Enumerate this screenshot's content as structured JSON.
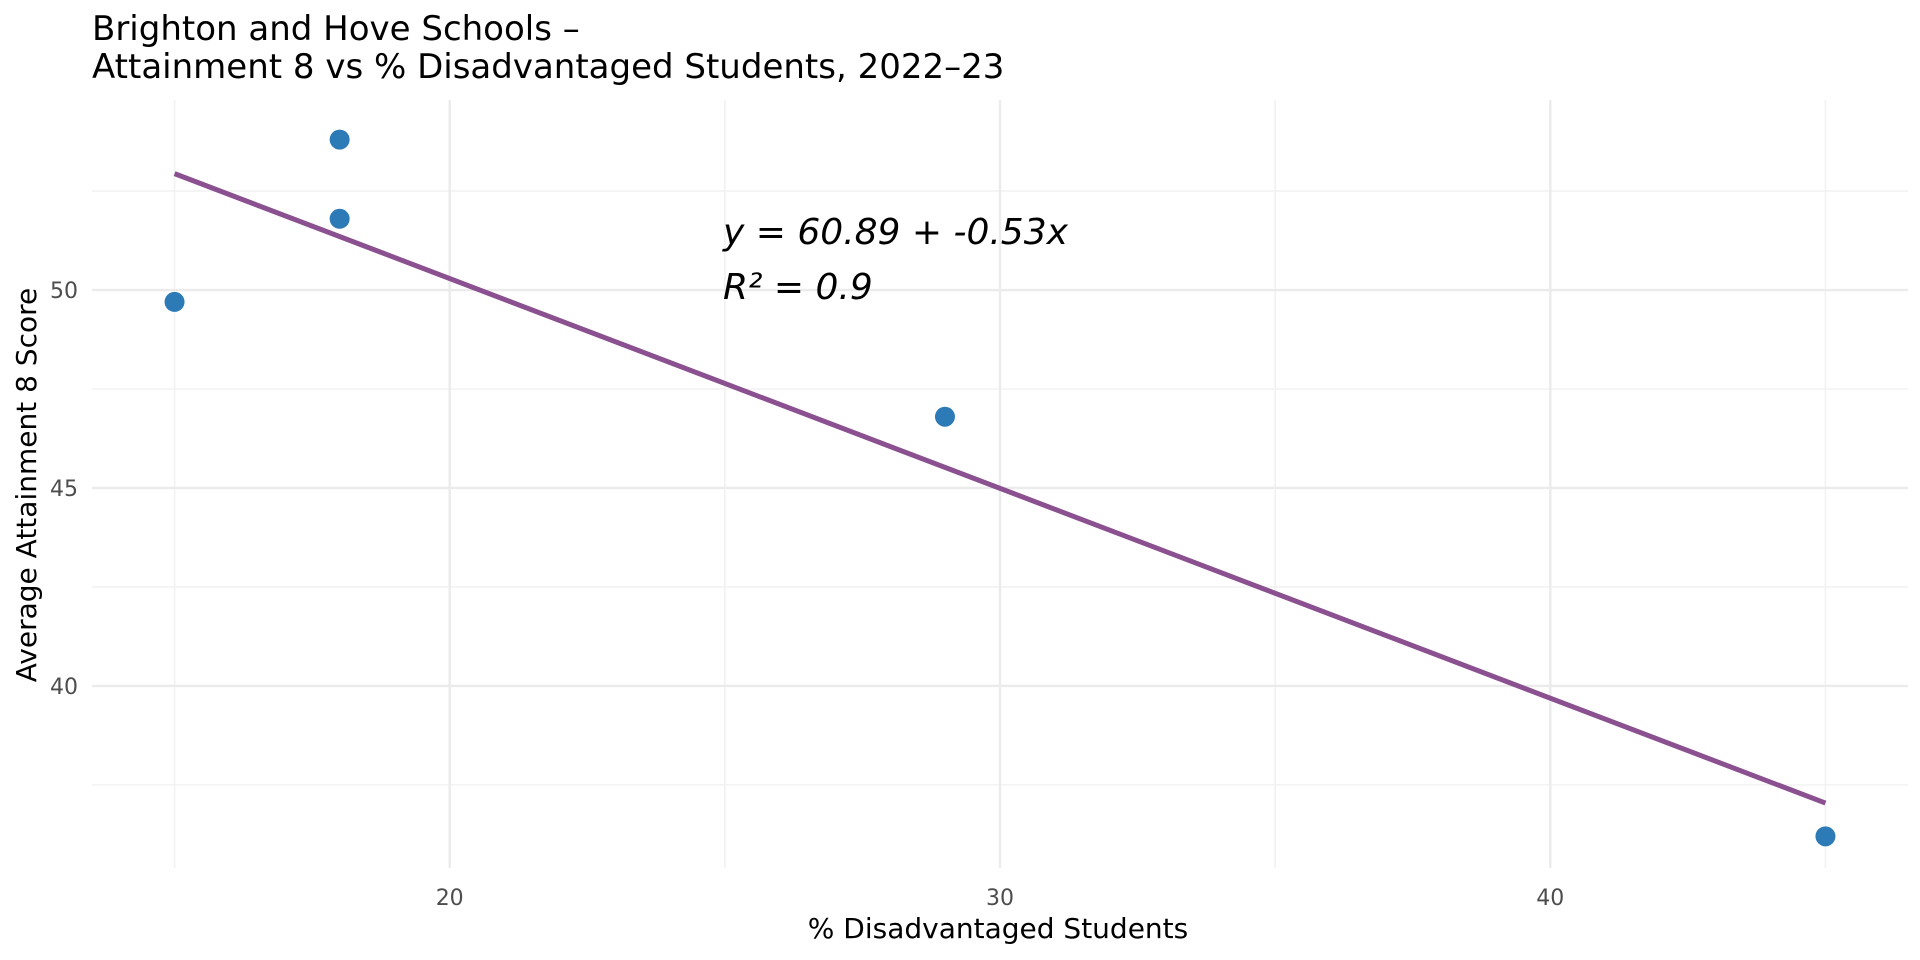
{
  "chart_data": {
    "type": "scatter",
    "title": "Brighton and Hove Schools –",
    "subtitle": "Attainment 8 vs % Disadvantaged Students, 2022–23",
    "xlabel": "% Disadvantaged Students",
    "ylabel": "Average Attainment 8 Score",
    "xlim": [
      13.5,
      46.5
    ],
    "ylim": [
      35.4,
      54.8
    ],
    "x_major_ticks": [
      20,
      30,
      40
    ],
    "x_minor_ticks": [
      15,
      25,
      35,
      45
    ],
    "y_major_ticks": [
      40,
      45,
      50
    ],
    "y_minor_ticks": [
      37.5,
      42.5,
      47.5,
      52.5
    ],
    "grid": true,
    "points": [
      {
        "x": 15.0,
        "y": 49.7
      },
      {
        "x": 18.0,
        "y": 53.8
      },
      {
        "x": 18.0,
        "y": 51.8
      },
      {
        "x": 29.0,
        "y": 46.8
      },
      {
        "x": 45.0,
        "y": 36.2
      }
    ],
    "fit_line": {
      "intercept": 60.89,
      "slope": -0.53,
      "x_range": [
        15.0,
        45.0
      ]
    },
    "annotation": {
      "equation": "y = 60.89 + -0.53x",
      "r_squared": "R² = 0.9"
    },
    "colors": {
      "points": "#2c7bb6",
      "fit_line": "#8a508f"
    }
  }
}
